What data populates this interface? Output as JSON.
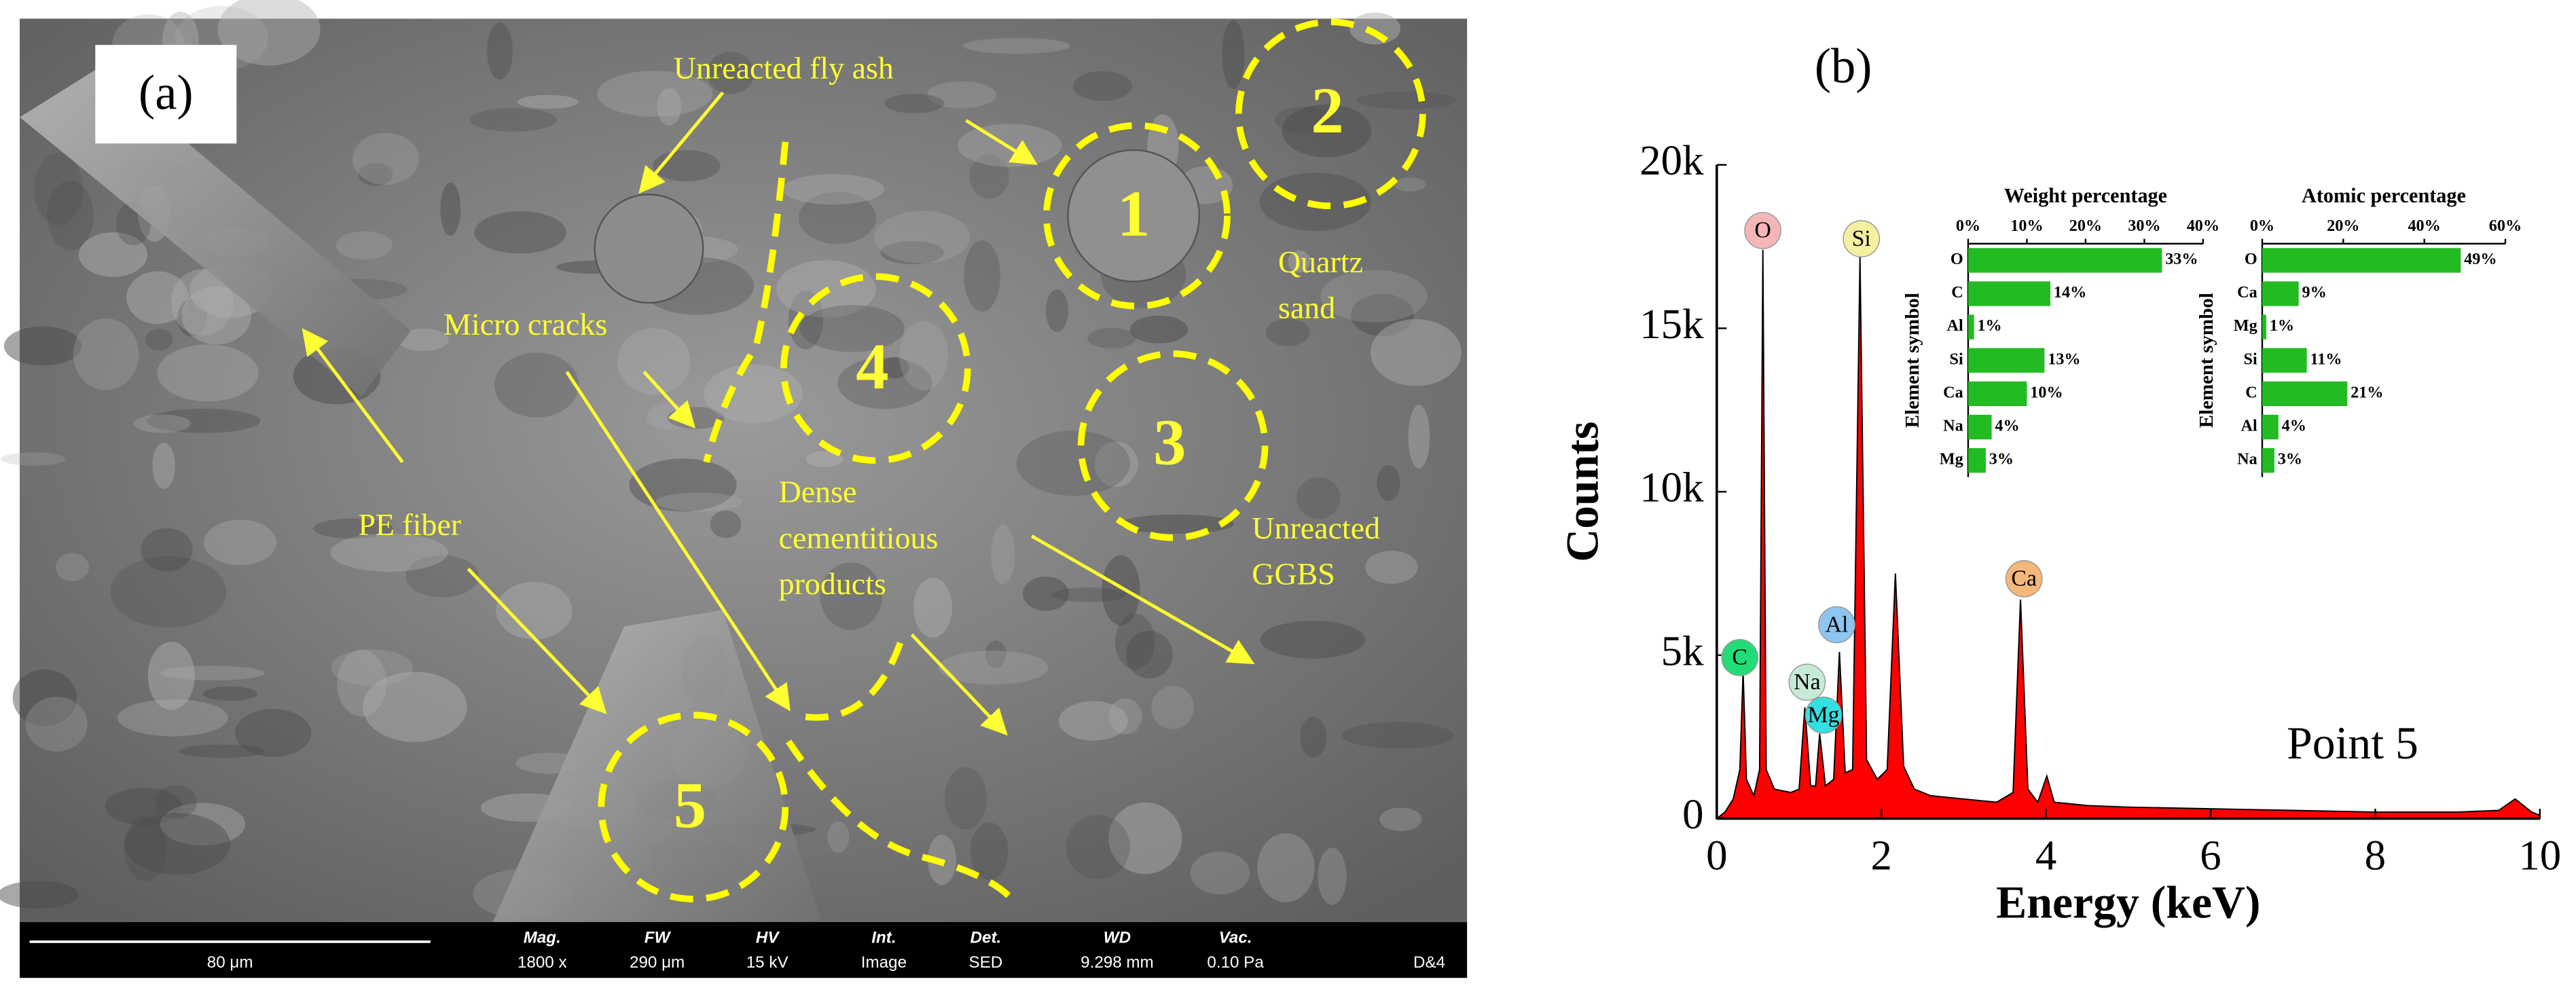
{
  "sem_image": {
    "panel_label": "(a)",
    "annotations": {
      "fly_ash": "Unreacted fly ash",
      "quartz": [
        "Quartz",
        "sand"
      ],
      "cracks": "Micro cracks",
      "fiber": "PE fiber",
      "dense": [
        "Dense",
        "cementitious",
        "products"
      ],
      "ggbs": [
        "Unreacted",
        "GGBS"
      ]
    },
    "regions": [
      "1",
      "2",
      "3",
      "4",
      "5"
    ],
    "scale_bar": "80 μm",
    "info": [
      {
        "key": "Mag.",
        "value": "1800 x"
      },
      {
        "key": "FW",
        "value": "290 μm"
      },
      {
        "key": "HV",
        "value": "15 kV"
      },
      {
        "key": "Int.",
        "value": "Image"
      },
      {
        "key": "Det.",
        "value": "SED"
      },
      {
        "key": "WD",
        "value": "9.298 mm"
      },
      {
        "key": "Vac.",
        "value": "0.10 Pa"
      }
    ],
    "corner": "D&4"
  },
  "chart_data": [
    {
      "type": "area",
      "panel_label": "(b)",
      "xlabel": "Energy  (keV)",
      "ylabel": "Counts",
      "annotation": "Point 5",
      "color": "#ff0000",
      "x": [
        0,
        0.1,
        0.2,
        0.28,
        0.32,
        0.36,
        0.45,
        0.52,
        0.56,
        0.6,
        0.7,
        0.9,
        1.0,
        1.07,
        1.14,
        1.2,
        1.25,
        1.32,
        1.42,
        1.49,
        1.56,
        1.65,
        1.74,
        1.82,
        1.95,
        2.07,
        2.17,
        2.27,
        2.4,
        2.6,
        3.0,
        3.4,
        3.6,
        3.69,
        3.78,
        3.9,
        4.01,
        4.1,
        4.5,
        5,
        6,
        7,
        8,
        9,
        9.5,
        9.7,
        9.9,
        10
      ],
      "values": [
        0,
        200,
        600,
        1500,
        4500,
        1200,
        700,
        1500,
        17400,
        1500,
        900,
        800,
        900,
        3400,
        1000,
        1000,
        2600,
        1000,
        1200,
        5100,
        1400,
        1500,
        17200,
        1800,
        1200,
        1500,
        7500,
        1600,
        900,
        700,
        600,
        500,
        800,
        6700,
        900,
        500,
        1300,
        500,
        400,
        350,
        300,
        250,
        200,
        200,
        250,
        600,
        200,
        100
      ],
      "xlim": [
        0,
        10
      ],
      "xticks": [
        0,
        2,
        4,
        6,
        8,
        10
      ],
      "ylim": [
        0,
        20000
      ],
      "yticks": [
        0,
        {
          "value": 5000,
          "label": "5k"
        },
        {
          "value": 10000,
          "label": "10k"
        },
        {
          "value": 15000,
          "label": "15k"
        },
        {
          "value": 20000,
          "label": "20k"
        }
      ],
      "peak_labels": [
        {
          "text": "O",
          "color": "#f4b6b6"
        },
        {
          "text": "Si",
          "color": "#f5f0a0"
        },
        {
          "text": "C",
          "color": "#22dd77"
        },
        {
          "text": "Na",
          "color": "#c6ead6"
        },
        {
          "text": "Mg",
          "color": "#33e0e0"
        },
        {
          "text": "Al",
          "color": "#8ec5f0"
        },
        {
          "text": "Ca",
          "color": "#f5b87a"
        }
      ]
    },
    {
      "type": "barh",
      "title": "Weight percentage",
      "ylabel": "Element symbol",
      "color": "#22bb22",
      "categories": [
        "O",
        "C",
        "Al",
        "Si",
        "Ca",
        "Na",
        "Mg"
      ],
      "values": [
        33,
        14,
        1,
        13,
        10,
        4,
        3
      ],
      "value_labels": [
        "33%",
        "14%",
        "1%",
        "13%",
        "10%",
        "4%",
        "3%"
      ],
      "xlim": [
        0,
        40
      ],
      "xticks": [
        {
          "value": 0,
          "label": "0%"
        },
        {
          "value": 10,
          "label": "10%"
        },
        {
          "value": 20,
          "label": "20%"
        },
        {
          "value": 30,
          "label": "30%"
        },
        {
          "value": 40,
          "label": "40%"
        }
      ]
    },
    {
      "type": "barh",
      "title": "Atomic percentage",
      "ylabel": "Element symbol",
      "color": "#22bb22",
      "categories": [
        "O",
        "Ca",
        "Mg",
        "Si",
        "C",
        "Al",
        "Na"
      ],
      "values": [
        49,
        9,
        1,
        11,
        21,
        4,
        3
      ],
      "value_labels": [
        "49%",
        "9%",
        "1%",
        "11%",
        "21%",
        "4%",
        "3%"
      ],
      "xlim": [
        0,
        60
      ],
      "xticks": [
        {
          "value": 0,
          "label": "0%"
        },
        {
          "value": 20,
          "label": "20%"
        },
        {
          "value": 40,
          "label": "40%"
        },
        {
          "value": 60,
          "label": "60%"
        }
      ]
    }
  ]
}
